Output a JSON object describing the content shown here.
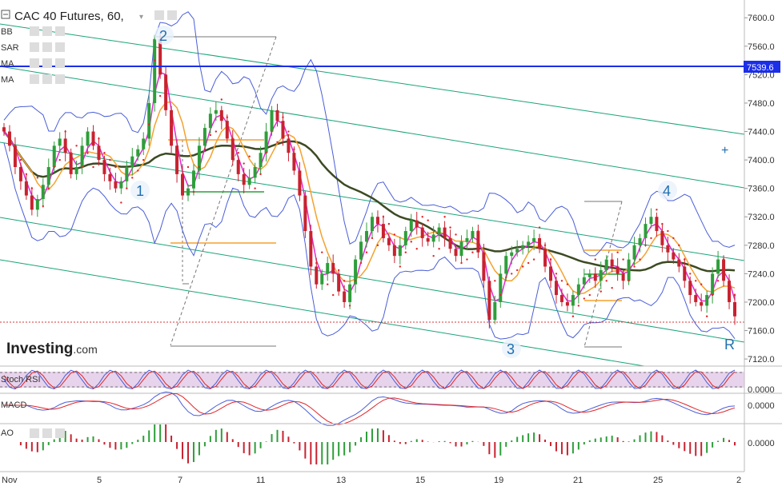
{
  "header": {
    "title": "CAC 40 Futures, 60,",
    "indicators": [
      "BB",
      "SAR",
      "MA",
      "MA"
    ]
  },
  "brand": {
    "name": "Investing",
    "suffix": ".com"
  },
  "colors": {
    "up": "#2e9e3a",
    "down": "#c8222f",
    "bb": "#4a5ed8",
    "ma_fast": "#e02bd0",
    "ma_mid": "#f5a12e",
    "ma_slow": "#3c4a23",
    "channel": "#1aa37a",
    "hline": "#1b2ee8",
    "sar": "#e0262b",
    "stoch": "#6a1b9a"
  },
  "chart_data": {
    "type": "line",
    "title": "CAC 40 Futures, 60,",
    "price_axis": {
      "ticks": [
        "7600.0",
        "7560.0",
        "7520.0",
        "7480.0",
        "7440.0",
        "7400.0",
        "7360.0",
        "7320.0",
        "7280.0",
        "7240.0",
        "7200.0",
        "7160.0",
        "7120.0"
      ],
      "range": [
        7110,
        7625
      ]
    },
    "x_ticks": [
      "Nov",
      "5",
      "7",
      "11",
      "13",
      "15",
      "19",
      "21",
      "25",
      "2"
    ],
    "price_marker": "7539.6",
    "wave_labels": [
      "1",
      "2",
      "3",
      "4",
      "R"
    ],
    "close_series": [
      7440,
      7420,
      7390,
      7370,
      7350,
      7330,
      7345,
      7365,
      7390,
      7420,
      7430,
      7410,
      7380,
      7390,
      7420,
      7440,
      7420,
      7400,
      7380,
      7370,
      7360,
      7370,
      7390,
      7405,
      7415,
      7430,
      7480,
      7570,
      7520,
      7470,
      7420,
      7380,
      7350,
      7360,
      7385,
      7420,
      7445,
      7465,
      7470,
      7455,
      7430,
      7400,
      7380,
      7365,
      7375,
      7390,
      7410,
      7440,
      7470,
      7455,
      7430,
      7410,
      7385,
      7350,
      7300,
      7250,
      7225,
      7240,
      7255,
      7240,
      7215,
      7200,
      7225,
      7260,
      7285,
      7300,
      7320,
      7310,
      7290,
      7280,
      7265,
      7280,
      7300,
      7315,
      7305,
      7290,
      7285,
      7295,
      7305,
      7290,
      7275,
      7265,
      7285,
      7290,
      7300,
      7270,
      7230,
      7175,
      7200,
      7240,
      7265,
      7270,
      7275,
      7280,
      7285,
      7290,
      7275,
      7250,
      7230,
      7210,
      7200,
      7195,
      7210,
      7225,
      7235,
      7240,
      7230,
      7245,
      7260,
      7250,
      7240,
      7230,
      7260,
      7280,
      7290,
      7310,
      7320,
      7300,
      7280,
      7270,
      7260,
      7250,
      7230,
      7210,
      7200,
      7195,
      7210,
      7240,
      7260,
      7230,
      7200,
      7180
    ],
    "oscillators": [
      {
        "name": "Stoch RSI",
        "value": "0.0000"
      },
      {
        "name": "MACD",
        "value": "0.0000"
      },
      {
        "name": "AO",
        "value": "0.0000"
      }
    ]
  }
}
